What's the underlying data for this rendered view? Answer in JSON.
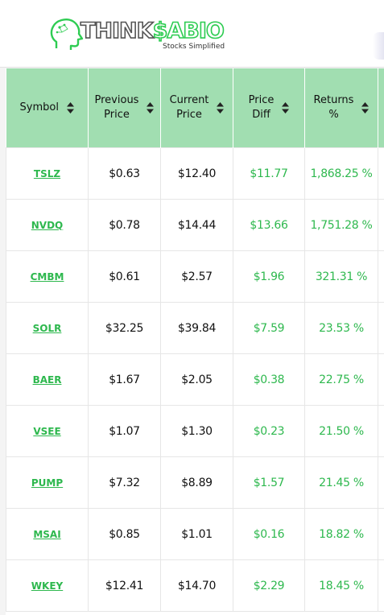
{
  "brand": {
    "name_think": "THINK",
    "name_sabio": "$ABIO",
    "tagline": "Stocks Simplified"
  },
  "table": {
    "headers": [
      {
        "line1": "Symbol",
        "line2": ""
      },
      {
        "line1": "Previous",
        "line2": "Price"
      },
      {
        "line1": "Current",
        "line2": "Price"
      },
      {
        "line1": "Price",
        "line2": "Diff"
      },
      {
        "line1": "Returns",
        "line2": "%"
      }
    ],
    "rows": [
      {
        "symbol": "TSLZ",
        "previous": "$0.63",
        "current": "$12.40",
        "diff": "$11.77",
        "returns": "1,868.25 %"
      },
      {
        "symbol": "NVDQ",
        "previous": "$0.78",
        "current": "$14.44",
        "diff": "$13.66",
        "returns": "1,751.28 %"
      },
      {
        "symbol": "CMBM",
        "previous": "$0.61",
        "current": "$2.57",
        "diff": "$1.96",
        "returns": "321.31 %"
      },
      {
        "symbol": "SOLR",
        "previous": "$32.25",
        "current": "$39.84",
        "diff": "$7.59",
        "returns": "23.53 %"
      },
      {
        "symbol": "BAER",
        "previous": "$1.67",
        "current": "$2.05",
        "diff": "$0.38",
        "returns": "22.75 %"
      },
      {
        "symbol": "VSEE",
        "previous": "$1.07",
        "current": "$1.30",
        "diff": "$0.23",
        "returns": "21.50 %"
      },
      {
        "symbol": "PUMP",
        "previous": "$7.32",
        "current": "$8.89",
        "diff": "$1.57",
        "returns": "21.45 %"
      },
      {
        "symbol": "MSAI",
        "previous": "$0.85",
        "current": "$1.01",
        "diff": "$0.16",
        "returns": "18.82 %"
      },
      {
        "symbol": "WKEY",
        "previous": "$12.41",
        "current": "$14.70",
        "diff": "$2.29",
        "returns": "18.45 %"
      }
    ]
  },
  "colors": {
    "accent_green": "#2eb84e",
    "header_bg": "#a1deb1"
  },
  "icons": {
    "sort": "sort-arrows-icon",
    "logo": "head-silhouette-icon"
  }
}
